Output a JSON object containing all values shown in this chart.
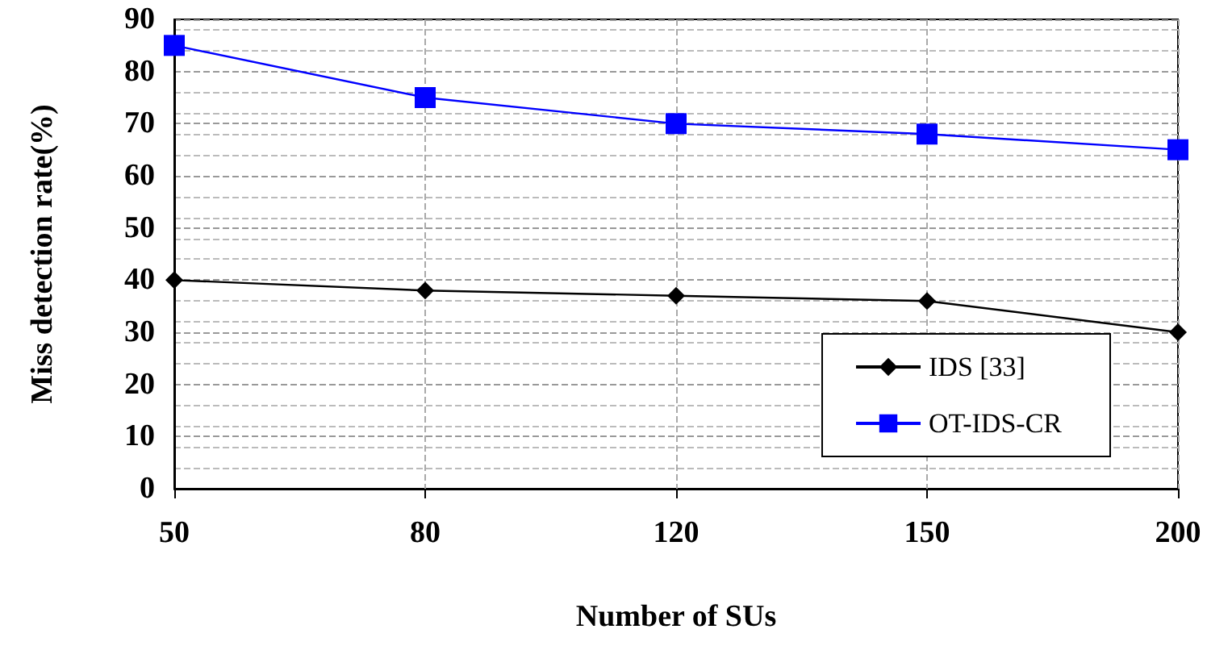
{
  "chart_data": {
    "type": "line",
    "xlabel": "Number of SUs",
    "ylabel": "Miss detection rate(%)",
    "categories": [
      "50",
      "80",
      "120",
      "150",
      "200"
    ],
    "series": [
      {
        "name": "IDS [33]",
        "color": "#000000",
        "marker": "diamond",
        "values": [
          40,
          38,
          37,
          36,
          30
        ]
      },
      {
        "name": "OT-IDS-CR",
        "color": "#0000ff",
        "marker": "square",
        "values": [
          85,
          75,
          70,
          68,
          65
        ]
      }
    ],
    "ylim": [
      0,
      90
    ],
    "yticks": [
      0,
      10,
      20,
      30,
      40,
      50,
      60,
      70,
      80,
      90
    ],
    "grid": true,
    "legend": "bottom right",
    "line_style": "solid"
  }
}
